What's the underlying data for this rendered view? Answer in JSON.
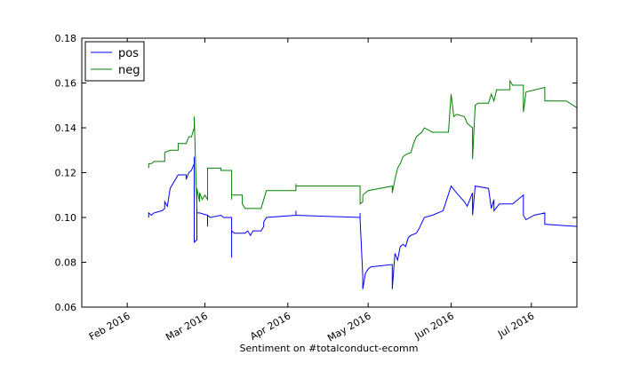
{
  "chart_data": {
    "type": "line",
    "title": "",
    "xlabel": "Sentiment on #totalconduct-ecomm",
    "ylabel": "",
    "xlim": [
      "2016-01-15",
      "2016-07-18"
    ],
    "ylim": [
      0.06,
      0.18
    ],
    "x_ticks": [
      {
        "date": "2016-02-01",
        "label": "Feb 2016"
      },
      {
        "date": "2016-03-01",
        "label": "Mar 2016"
      },
      {
        "date": "2016-04-01",
        "label": "Apr 2016"
      },
      {
        "date": "2016-05-01",
        "label": "May 2016"
      },
      {
        "date": "2016-06-01",
        "label": "Jun 2016"
      },
      {
        "date": "2016-07-01",
        "label": "Jul 2016"
      }
    ],
    "y_ticks": [
      {
        "value": 0.06,
        "label": "0.06"
      },
      {
        "value": 0.08,
        "label": "0.08"
      },
      {
        "value": 0.1,
        "label": "0.10"
      },
      {
        "value": 0.12,
        "label": "0.12"
      },
      {
        "value": 0.14,
        "label": "0.14"
      },
      {
        "value": 0.16,
        "label": "0.16"
      },
      {
        "value": 0.18,
        "label": "0.18"
      }
    ],
    "grid": false,
    "legend_position": "top-left",
    "series": [
      {
        "name": "pos",
        "color": "#0000ff",
        "points": [
          [
            "2016-02-09",
            0.1
          ],
          [
            "2016-02-09",
            0.102
          ],
          [
            "2016-02-10",
            0.101
          ],
          [
            "2016-02-11",
            0.102
          ],
          [
            "2016-02-14",
            0.103
          ],
          [
            "2016-02-15",
            0.104
          ],
          [
            "2016-02-15",
            0.107
          ],
          [
            "2016-02-16",
            0.105
          ],
          [
            "2016-02-17",
            0.113
          ],
          [
            "2016-02-20",
            0.119
          ],
          [
            "2016-02-23",
            0.119
          ],
          [
            "2016-02-23",
            0.117
          ],
          [
            "2016-02-24",
            0.12
          ],
          [
            "2016-02-25",
            0.121
          ],
          [
            "2016-02-26",
            0.124
          ],
          [
            "2016-02-26",
            0.127
          ],
          [
            "2016-02-26",
            0.089
          ],
          [
            "2016-02-27",
            0.09
          ],
          [
            "2016-02-27",
            0.108
          ],
          [
            "2016-02-27",
            0.102
          ],
          [
            "2016-02-28",
            0.102
          ],
          [
            "2016-03-02",
            0.101
          ],
          [
            "2016-03-02",
            0.098
          ],
          [
            "2016-03-02",
            0.096
          ],
          [
            "2016-03-02",
            0.101
          ],
          [
            "2016-03-03",
            0.1
          ],
          [
            "2016-03-07",
            0.101
          ],
          [
            "2016-03-08",
            0.1
          ],
          [
            "2016-03-11",
            0.1
          ],
          [
            "2016-03-11",
            0.082
          ],
          [
            "2016-03-11",
            0.094
          ],
          [
            "2016-03-12",
            0.093
          ],
          [
            "2016-03-16",
            0.093
          ],
          [
            "2016-03-17",
            0.094
          ],
          [
            "2016-03-18",
            0.092
          ],
          [
            "2016-03-19",
            0.094
          ],
          [
            "2016-03-22",
            0.094
          ],
          [
            "2016-03-23",
            0.096
          ],
          [
            "2016-03-23",
            0.098
          ],
          [
            "2016-03-24",
            0.1
          ],
          [
            "2016-04-04",
            0.101
          ],
          [
            "2016-04-04",
            0.103
          ],
          [
            "2016-04-04",
            0.101
          ],
          [
            "2016-04-28",
            0.1
          ],
          [
            "2016-04-28",
            0.102
          ],
          [
            "2016-04-28",
            0.099
          ],
          [
            "2016-04-29",
            0.074
          ],
          [
            "2016-04-29",
            0.068
          ],
          [
            "2016-04-30",
            0.075
          ],
          [
            "2016-05-01",
            0.077
          ],
          [
            "2016-05-02",
            0.078
          ],
          [
            "2016-05-10",
            0.079
          ],
          [
            "2016-05-10",
            0.068
          ],
          [
            "2016-05-11",
            0.084
          ],
          [
            "2016-05-12",
            0.081
          ],
          [
            "2016-05-13",
            0.087
          ],
          [
            "2016-05-14",
            0.088
          ],
          [
            "2016-05-15",
            0.087
          ],
          [
            "2016-05-16",
            0.091
          ],
          [
            "2016-05-17",
            0.092
          ],
          [
            "2016-05-19",
            0.093
          ],
          [
            "2016-05-20",
            0.095
          ],
          [
            "2016-05-22",
            0.1
          ],
          [
            "2016-05-25",
            0.101
          ],
          [
            "2016-05-29",
            0.103
          ],
          [
            "2016-06-01",
            0.114
          ],
          [
            "2016-06-03",
            0.111
          ],
          [
            "2016-06-06",
            0.107
          ],
          [
            "2016-06-07",
            0.105
          ],
          [
            "2016-06-09",
            0.111
          ],
          [
            "2016-06-09",
            0.101
          ],
          [
            "2016-06-10",
            0.114
          ],
          [
            "2016-06-15",
            0.113
          ],
          [
            "2016-06-16",
            0.104
          ],
          [
            "2016-06-17",
            0.108
          ],
          [
            "2016-06-17",
            0.103
          ],
          [
            "2016-06-19",
            0.106
          ],
          [
            "2016-06-24",
            0.106
          ],
          [
            "2016-06-28",
            0.11
          ],
          [
            "2016-06-28",
            0.101
          ],
          [
            "2016-06-29",
            0.099
          ],
          [
            "2016-07-02",
            0.101
          ],
          [
            "2016-07-06",
            0.102
          ],
          [
            "2016-07-06",
            0.097
          ],
          [
            "2016-07-18",
            0.096
          ]
        ]
      },
      {
        "name": "neg",
        "color": "#008000",
        "points": [
          [
            "2016-02-09",
            0.122
          ],
          [
            "2016-02-09",
            0.124
          ],
          [
            "2016-02-10",
            0.124
          ],
          [
            "2016-02-11",
            0.125
          ],
          [
            "2016-02-15",
            0.125
          ],
          [
            "2016-02-15",
            0.129
          ],
          [
            "2016-02-17",
            0.13
          ],
          [
            "2016-02-20",
            0.13
          ],
          [
            "2016-02-20",
            0.133
          ],
          [
            "2016-02-23",
            0.133
          ],
          [
            "2016-02-24",
            0.136
          ],
          [
            "2016-02-25",
            0.136
          ],
          [
            "2016-02-26",
            0.14
          ],
          [
            "2016-02-26",
            0.145
          ],
          [
            "2016-02-27",
            0.104
          ],
          [
            "2016-02-27",
            0.113
          ],
          [
            "2016-02-28",
            0.107
          ],
          [
            "2016-02-28",
            0.111
          ],
          [
            "2016-02-29",
            0.108
          ],
          [
            "2016-03-01",
            0.11
          ],
          [
            "2016-03-02",
            0.108
          ],
          [
            "2016-03-02",
            0.122
          ],
          [
            "2016-03-07",
            0.122
          ],
          [
            "2016-03-07",
            0.121
          ],
          [
            "2016-03-11",
            0.121
          ],
          [
            "2016-03-11",
            0.108
          ],
          [
            "2016-03-11",
            0.11
          ],
          [
            "2016-03-15",
            0.11
          ],
          [
            "2016-03-15",
            0.106
          ],
          [
            "2016-03-16",
            0.104
          ],
          [
            "2016-03-22",
            0.104
          ],
          [
            "2016-03-23",
            0.108
          ],
          [
            "2016-03-24",
            0.112
          ],
          [
            "2016-04-04",
            0.112
          ],
          [
            "2016-04-04",
            0.115
          ],
          [
            "2016-04-04",
            0.114
          ],
          [
            "2016-04-28",
            0.114
          ],
          [
            "2016-04-28",
            0.106
          ],
          [
            "2016-04-29",
            0.107
          ],
          [
            "2016-04-29",
            0.11
          ],
          [
            "2016-04-30",
            0.111
          ],
          [
            "2016-05-01",
            0.112
          ],
          [
            "2016-05-10",
            0.114
          ],
          [
            "2016-05-10",
            0.111
          ],
          [
            "2016-05-11",
            0.117
          ],
          [
            "2016-05-12",
            0.122
          ],
          [
            "2016-05-13",
            0.124
          ],
          [
            "2016-05-14",
            0.127
          ],
          [
            "2016-05-15",
            0.128
          ],
          [
            "2016-05-17",
            0.129
          ],
          [
            "2016-05-18",
            0.133
          ],
          [
            "2016-05-19",
            0.136
          ],
          [
            "2016-05-21",
            0.138
          ],
          [
            "2016-05-22",
            0.14
          ],
          [
            "2016-05-25",
            0.138
          ],
          [
            "2016-05-31",
            0.138
          ],
          [
            "2016-06-01",
            0.155
          ],
          [
            "2016-06-02",
            0.145
          ],
          [
            "2016-06-03",
            0.146
          ],
          [
            "2016-06-06",
            0.145
          ],
          [
            "2016-06-07",
            0.142
          ],
          [
            "2016-06-09",
            0.14
          ],
          [
            "2016-06-09",
            0.126
          ],
          [
            "2016-06-10",
            0.15
          ],
          [
            "2016-06-11",
            0.151
          ],
          [
            "2016-06-15",
            0.151
          ],
          [
            "2016-06-16",
            0.155
          ],
          [
            "2016-06-17",
            0.152
          ],
          [
            "2016-06-18",
            0.157
          ],
          [
            "2016-06-23",
            0.157
          ],
          [
            "2016-06-23",
            0.161
          ],
          [
            "2016-06-24",
            0.159
          ],
          [
            "2016-06-28",
            0.159
          ],
          [
            "2016-06-28",
            0.147
          ],
          [
            "2016-06-29",
            0.156
          ],
          [
            "2016-07-06",
            0.158
          ],
          [
            "2016-07-06",
            0.152
          ],
          [
            "2016-07-14",
            0.152
          ],
          [
            "2016-07-18",
            0.149
          ]
        ]
      }
    ]
  }
}
